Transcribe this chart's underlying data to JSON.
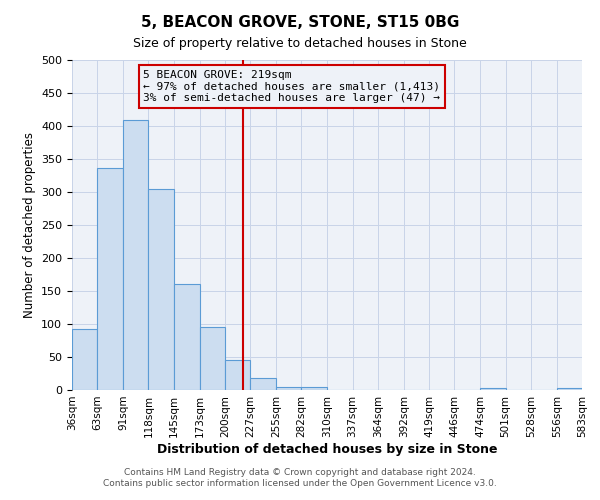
{
  "title": "5, BEACON GROVE, STONE, ST15 0BG",
  "subtitle": "Size of property relative to detached houses in Stone",
  "xlabel": "Distribution of detached houses by size in Stone",
  "ylabel": "Number of detached properties",
  "footnote1": "Contains HM Land Registry data © Crown copyright and database right 2024.",
  "footnote2": "Contains public sector information licensed under the Open Government Licence v3.0.",
  "bar_edges": [
    36,
    63,
    91,
    118,
    145,
    173,
    200,
    227,
    255,
    282,
    310,
    337,
    364,
    392,
    419,
    446,
    474,
    501,
    528,
    556,
    583
  ],
  "bar_heights": [
    93,
    336,
    409,
    304,
    160,
    95,
    45,
    18,
    5,
    5,
    0,
    0,
    0,
    0,
    0,
    0,
    3,
    0,
    0,
    3
  ],
  "bar_color": "#ccddf0",
  "bar_edge_color": "#5b9bd5",
  "vline_x": 219,
  "vline_color": "#cc0000",
  "ylim": [
    0,
    500
  ],
  "yticks": [
    0,
    50,
    100,
    150,
    200,
    250,
    300,
    350,
    400,
    450,
    500
  ],
  "annotation_title": "5 BEACON GROVE: 219sqm",
  "annotation_line1": "← 97% of detached houses are smaller (1,413)",
  "annotation_line2": "3% of semi-detached houses are larger (47) →",
  "annotation_box_color": "#cc0000",
  "grid_color": "#c8d4e8",
  "plot_bg_color": "#eef2f8",
  "fig_bg_color": "#ffffff"
}
